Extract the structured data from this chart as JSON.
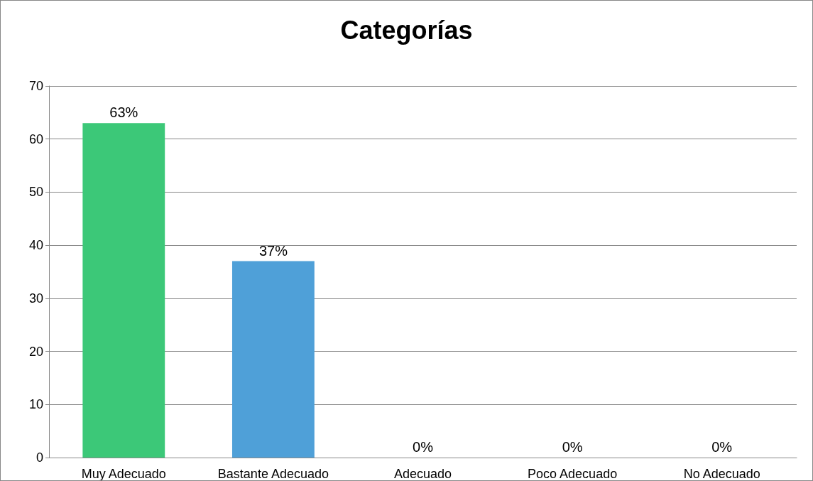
{
  "chart_data": {
    "type": "bar",
    "title": "Categorías",
    "categories": [
      "Muy Adecuado",
      "Bastante Adecuado",
      "Adecuado",
      "Poco Adecuado",
      "No Adecuado"
    ],
    "values": [
      63,
      37,
      0,
      0,
      0
    ],
    "colors": [
      "#3cc878",
      "#4fa0d8",
      null,
      null,
      null
    ],
    "value_labels": [
      "63%",
      "37%",
      "0%",
      "0%",
      "0%"
    ],
    "ylim": [
      0,
      70
    ],
    "yticks": [
      0,
      10,
      20,
      30,
      40,
      50,
      60,
      70
    ],
    "grid": "y"
  }
}
